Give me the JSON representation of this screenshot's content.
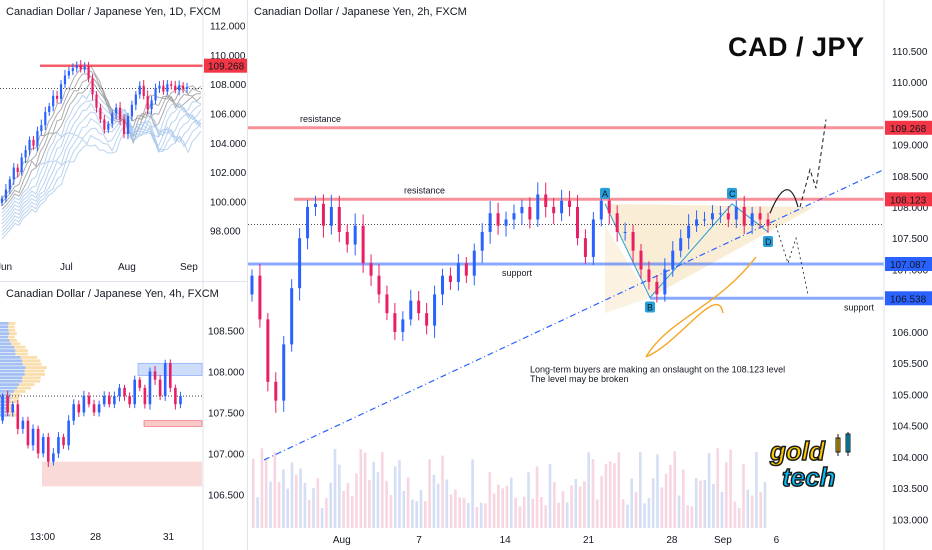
{
  "brand_title": "CAD / JPY",
  "logo": {
    "line1": "gold",
    "line2": "tech"
  },
  "colors": {
    "up": "#2962ff",
    "down": "#e91e63",
    "resistance": "#f23645",
    "support": "#2962ff",
    "triangle": "#f5deb3",
    "arrow": "#f5a623",
    "trend": "#2962ff"
  },
  "chart_data": [
    {
      "id": "daily",
      "type": "candlestick",
      "title": "Canadian Dollar / Japanese Yen, 1D, FXCM",
      "yticks": [
        "112.000",
        "110.000",
        "108.000",
        "106.000",
        "104.000",
        "102.000",
        "100.000",
        "98.000"
      ],
      "ytick_values": [
        112,
        110,
        108,
        106,
        104,
        102,
        100,
        98
      ],
      "ylim": [
        96.4,
        112.8
      ],
      "xticks": [
        "Jun",
        "Jul",
        "Aug",
        "Sep"
      ],
      "price_labels": [
        {
          "text": "109.268",
          "value": 109.268,
          "color": "#f23645"
        }
      ],
      "resistance": 109.268,
      "last_price": 107.7,
      "close_series": [
        100.2,
        100.8,
        101.5,
        102.3,
        102.0,
        103.0,
        103.5,
        104.2,
        103.8,
        104.8,
        105.2,
        106.1,
        106.5,
        107.2,
        107.0,
        108.0,
        108.6,
        108.9,
        109.1,
        109.3,
        109.0,
        109.2,
        108.4,
        107.3,
        106.4,
        105.6,
        104.9,
        105.3,
        106.0,
        106.4,
        105.6,
        104.6,
        105.8,
        106.6,
        107.3,
        107.9,
        107.2,
        106.3,
        106.9,
        107.7,
        107.9,
        107.5,
        108.0,
        107.9,
        107.6,
        107.9,
        107.7,
        107.8
      ]
    },
    {
      "id": "h4",
      "type": "candlestick",
      "title": "Canadian Dollar / Japanese Yen, 4h, FXCM",
      "yticks": [
        "108.500",
        "108.000",
        "107.500",
        "107.000",
        "106.500"
      ],
      "ytick_values": [
        108.5,
        108.0,
        107.5,
        107.0,
        106.5
      ],
      "ylim": [
        106.14,
        108.92
      ],
      "xticks": [
        "13:00",
        "28",
        "31"
      ],
      "close_series": [
        107.7,
        107.5,
        107.6,
        107.3,
        107.4,
        107.1,
        107.3,
        107.0,
        107.2,
        106.9,
        107.0,
        107.2,
        107.1,
        107.4,
        107.6,
        107.5,
        107.7,
        107.6,
        107.5,
        107.6,
        107.7,
        107.6,
        107.7,
        107.8,
        107.7,
        107.6,
        107.9,
        107.8,
        107.6,
        108.0,
        107.9,
        107.7,
        108.1,
        107.8,
        107.6,
        107.7
      ]
    },
    {
      "id": "h2",
      "type": "candlestick",
      "title": "Canadian Dollar / Japanese Yen, 2h, FXCM",
      "yticks": [
        "110.500",
        "110.000",
        "109.500",
        "109.000",
        "108.500",
        "108.000",
        "107.500",
        "107.000",
        "106.500",
        "106.000",
        "105.500",
        "105.000",
        "104.500",
        "104.000",
        "103.500",
        "103.000"
      ],
      "ytick_values": [
        110.5,
        110.0,
        109.5,
        109.0,
        108.5,
        108.0,
        107.5,
        107.0,
        106.5,
        106.0,
        105.5,
        105.0,
        104.5,
        104.0,
        103.5,
        103.0
      ],
      "ylim": [
        102.86,
        111.09
      ],
      "xticks": [
        "Aug",
        "7",
        "14",
        "21",
        "28",
        "Sep",
        "6"
      ],
      "xtick_days": [
        0,
        7,
        14,
        21,
        28,
        32,
        37
      ],
      "xlim_days": [
        -7.8,
        45.6
      ],
      "price_labels": [
        {
          "text": "109.268",
          "value": 109.268,
          "color": "#f23645"
        },
        {
          "text": "108.123",
          "value": 108.123,
          "color": "#f23645"
        },
        {
          "text": "107.087",
          "value": 107.087,
          "color": "#2962ff"
        },
        {
          "text": "106.538",
          "value": 106.538,
          "color": "#2962ff"
        }
      ],
      "levels": [
        {
          "value": 109.268,
          "label": "resistance",
          "kind": "resistance"
        },
        {
          "value": 108.123,
          "label": "resistance",
          "kind": "resistance"
        },
        {
          "value": 107.087,
          "label": "support",
          "kind": "support"
        },
        {
          "value": 106.538,
          "label": "support",
          "kind": "support"
        }
      ],
      "last_price": 107.72,
      "pattern_points": [
        "A",
        "B",
        "C",
        "D"
      ],
      "annotation": {
        "line1": "Long-term buyers are making an onslaught on the 108.123 level",
        "line2": "The level may be broken"
      },
      "close_series": [
        106.9,
        106.2,
        105.2,
        104.9,
        105.8,
        106.7,
        107.5,
        108.0,
        108.05,
        107.7,
        108.0,
        107.6,
        107.4,
        107.7,
        107.1,
        106.9,
        106.6,
        106.3,
        106.0,
        106.2,
        106.5,
        106.3,
        106.1,
        106.6,
        106.9,
        106.8,
        107.1,
        106.9,
        107.3,
        107.6,
        107.9,
        107.7,
        107.8,
        107.9,
        108.0,
        107.8,
        108.2,
        108.0,
        107.9,
        108.1,
        108.0,
        107.5,
        107.2,
        107.8,
        108.1,
        107.9,
        107.6,
        107.6,
        107.3,
        107.0,
        106.8,
        106.6,
        107.0,
        107.3,
        107.5,
        107.7,
        107.8,
        107.8,
        107.9,
        107.9,
        107.8,
        108.0,
        107.7,
        107.9,
        107.8,
        107.7
      ]
    }
  ]
}
